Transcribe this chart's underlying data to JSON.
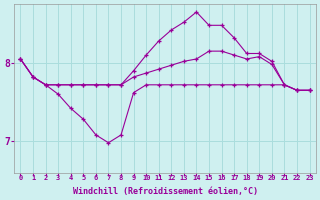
{
  "background_color": "#cff0f0",
  "line_color": "#990099",
  "grid_color": "#aadddd",
  "xlabel": "Windchill (Refroidissement éolien,°C)",
  "xlabel_color": "#990099",
  "tick_color": "#990099",
  "xlim": [
    -0.5,
    23.5
  ],
  "ylim": [
    6.6,
    8.75
  ],
  "yticks": [
    7,
    8
  ],
  "xticks": [
    0,
    1,
    2,
    3,
    4,
    5,
    6,
    7,
    8,
    9,
    10,
    11,
    12,
    13,
    14,
    15,
    16,
    17,
    18,
    19,
    20,
    21,
    22,
    23
  ],
  "series": [
    {
      "x": [
        0,
        1,
        2,
        3,
        4,
        5,
        6,
        7,
        8,
        9,
        10,
        11,
        12,
        13,
        14,
        15,
        16,
        17,
        18,
        19,
        20,
        21,
        22,
        23
      ],
      "y": [
        8.05,
        7.82,
        7.72,
        7.72,
        7.72,
        7.72,
        7.72,
        7.72,
        7.72,
        7.82,
        7.87,
        7.92,
        7.97,
        8.02,
        8.05,
        8.15,
        8.15,
        8.1,
        8.05,
        8.08,
        7.98,
        7.72,
        7.65,
        7.65
      ]
    },
    {
      "x": [
        0,
        1,
        2,
        3,
        4,
        5,
        6,
        7,
        8,
        9,
        10,
        11,
        12,
        13,
        14,
        15,
        16,
        17,
        18,
        19,
        20,
        21,
        22,
        23
      ],
      "y": [
        8.05,
        7.82,
        7.72,
        7.72,
        7.72,
        7.72,
        7.72,
        7.72,
        7.72,
        7.9,
        8.1,
        8.28,
        8.42,
        8.52,
        8.65,
        8.48,
        8.48,
        8.32,
        8.12,
        8.12,
        8.02,
        7.72,
        7.65,
        7.65
      ]
    },
    {
      "x": [
        0,
        1,
        2,
        3,
        4,
        5,
        6,
        7,
        8,
        9,
        10,
        11,
        12,
        13,
        14,
        15,
        16,
        17,
        18,
        19,
        20,
        21,
        22,
        23
      ],
      "y": [
        8.05,
        7.82,
        7.72,
        7.6,
        7.42,
        7.28,
        7.08,
        6.98,
        7.08,
        7.62,
        7.72,
        7.72,
        7.72,
        7.72,
        7.72,
        7.72,
        7.72,
        7.72,
        7.72,
        7.72,
        7.72,
        7.72,
        7.65,
        7.65
      ]
    }
  ]
}
